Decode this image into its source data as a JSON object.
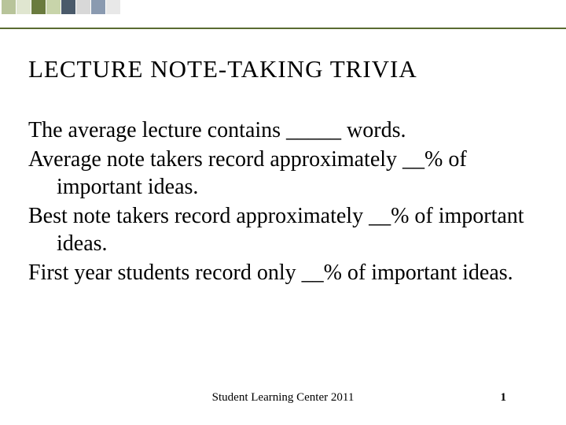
{
  "decoration": {
    "border_line_top": 35,
    "border_line_color": "#5a6b31",
    "squares": [
      {
        "color": "#b8c49a"
      },
      {
        "color": "#e0e6d0"
      },
      {
        "color": "#6a7b3e"
      },
      {
        "color": "#c8d4aa"
      },
      {
        "color": "#4a5a6a"
      },
      {
        "color": "#d8d8d8"
      },
      {
        "color": "#8a9ab0"
      },
      {
        "color": "#e8e8e8"
      }
    ]
  },
  "title": "LECTURE NOTE-TAKING TRIVIA",
  "statements": [
    "The average lecture contains _____ words.",
    "Average note takers record approximately __% of important ideas.",
    "Best note takers record approximately __% of important ideas.",
    "First year students record only __% of important ideas."
  ],
  "footer": "Student Learning Center 2011",
  "page_number": "1",
  "colors": {
    "background": "#ffffff",
    "text": "#000000"
  }
}
